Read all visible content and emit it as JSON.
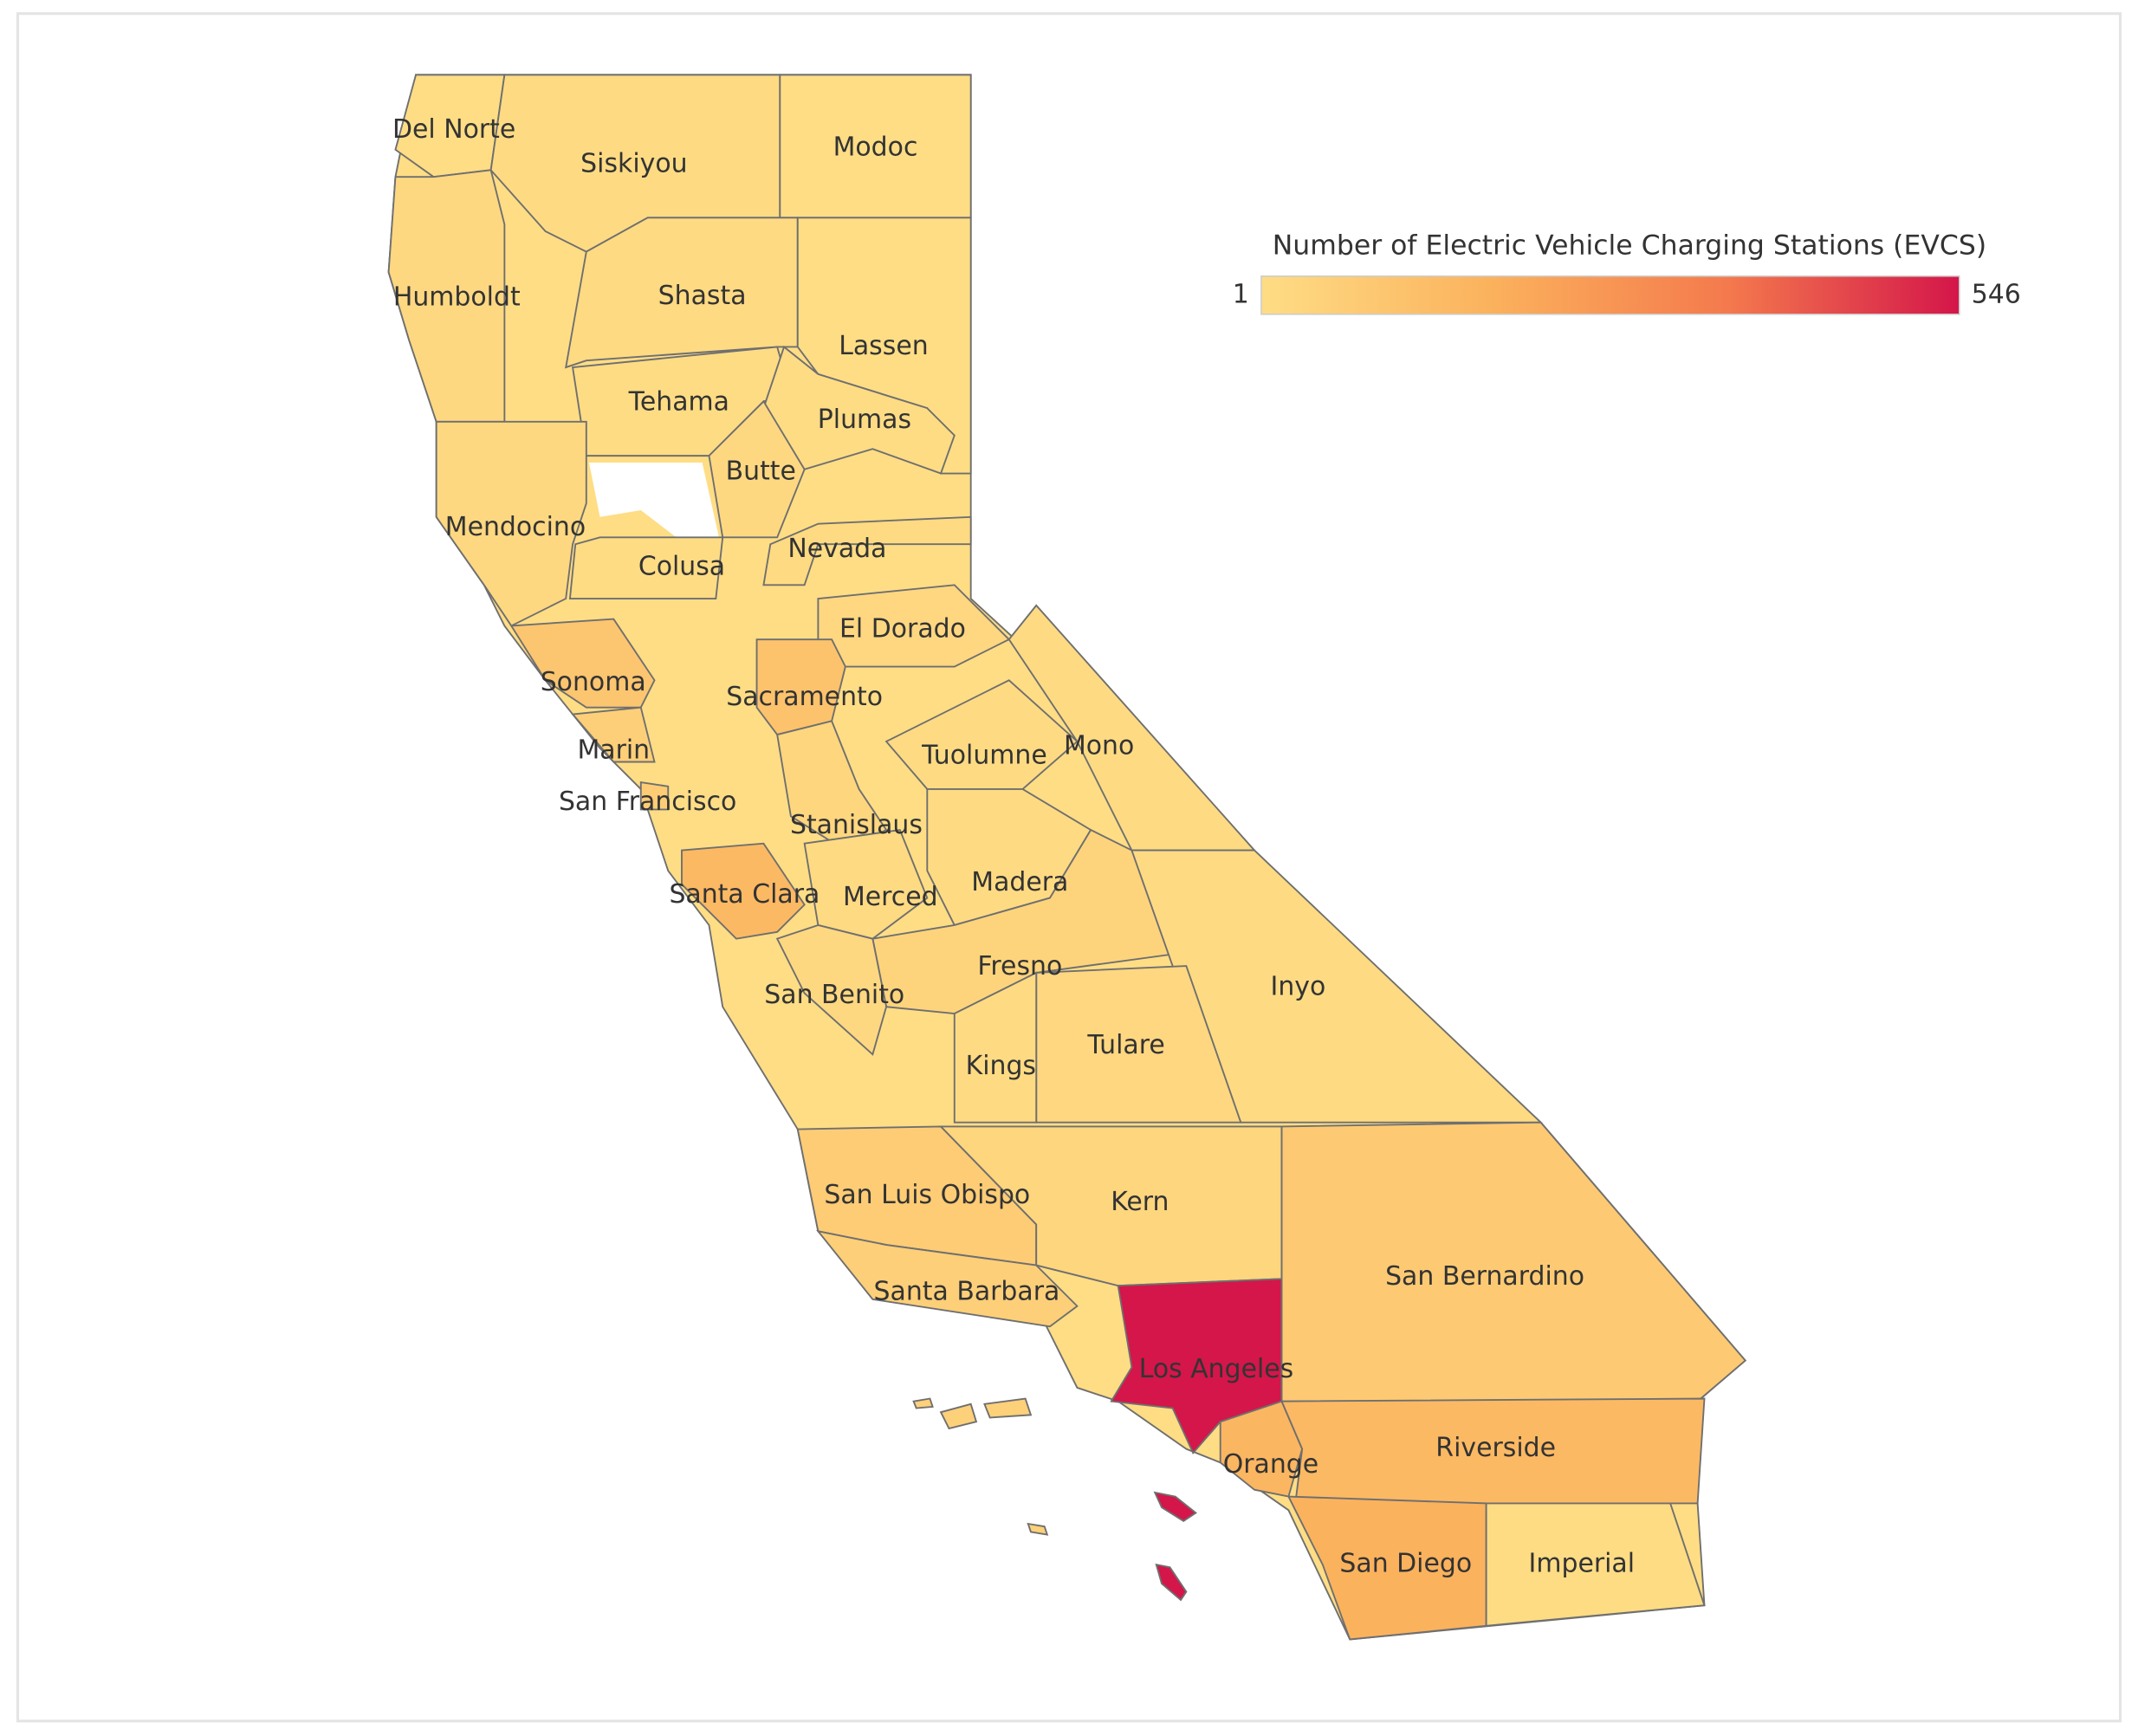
{
  "map": {
    "legend": {
      "title": "Number of Electric Vehicle Charging Stations (EVCS)",
      "min": 1,
      "max": 546,
      "colors": [
        "#fedd85",
        "#fbb15c",
        "#f47a4d",
        "#d4164a"
      ]
    },
    "regions": [
      {
        "name": "Del Norte",
        "value": 3
      },
      {
        "name": "Siskiyou",
        "value": 8
      },
      {
        "name": "Modoc",
        "value": 1
      },
      {
        "name": "Humboldt",
        "value": 20
      },
      {
        "name": "Shasta",
        "value": 15
      },
      {
        "name": "Lassen",
        "value": 3
      },
      {
        "name": "Tehama",
        "value": 6
      },
      {
        "name": "Plumas",
        "value": 6
      },
      {
        "name": "Butte",
        "value": 20
      },
      {
        "name": "Mendocino",
        "value": 20
      },
      {
        "name": "Colusa",
        "value": 5
      },
      {
        "name": "Nevada",
        "value": 15
      },
      {
        "name": "El Dorado",
        "value": 25
      },
      {
        "name": "Sonoma",
        "value": 100
      },
      {
        "name": "Sacramento",
        "value": 110
      },
      {
        "name": "Marin",
        "value": 60
      },
      {
        "name": "San Francisco",
        "value": 70
      },
      {
        "name": "Stanislaus",
        "value": 30
      },
      {
        "name": "Tuolumne",
        "value": 10
      },
      {
        "name": "Mono",
        "value": 10
      },
      {
        "name": "Santa Clara",
        "value": 150
      },
      {
        "name": "Merced",
        "value": 15
      },
      {
        "name": "Madera",
        "value": 8
      },
      {
        "name": "Fresno",
        "value": 40
      },
      {
        "name": "San Benito",
        "value": 20
      },
      {
        "name": "Inyo",
        "value": 8
      },
      {
        "name": "Tulare",
        "value": 25
      },
      {
        "name": "Kings",
        "value": 8
      },
      {
        "name": "San Luis Obispo",
        "value": 70
      },
      {
        "name": "Kern",
        "value": 30
      },
      {
        "name": "Santa Barbara",
        "value": 60
      },
      {
        "name": "Los Angeles",
        "value": 546
      },
      {
        "name": "San Bernardino",
        "value": 80
      },
      {
        "name": "Orange",
        "value": 160
      },
      {
        "name": "Riverside",
        "value": 150
      },
      {
        "name": "San Diego",
        "value": 180
      },
      {
        "name": "Imperial",
        "value": 5
      }
    ]
  }
}
